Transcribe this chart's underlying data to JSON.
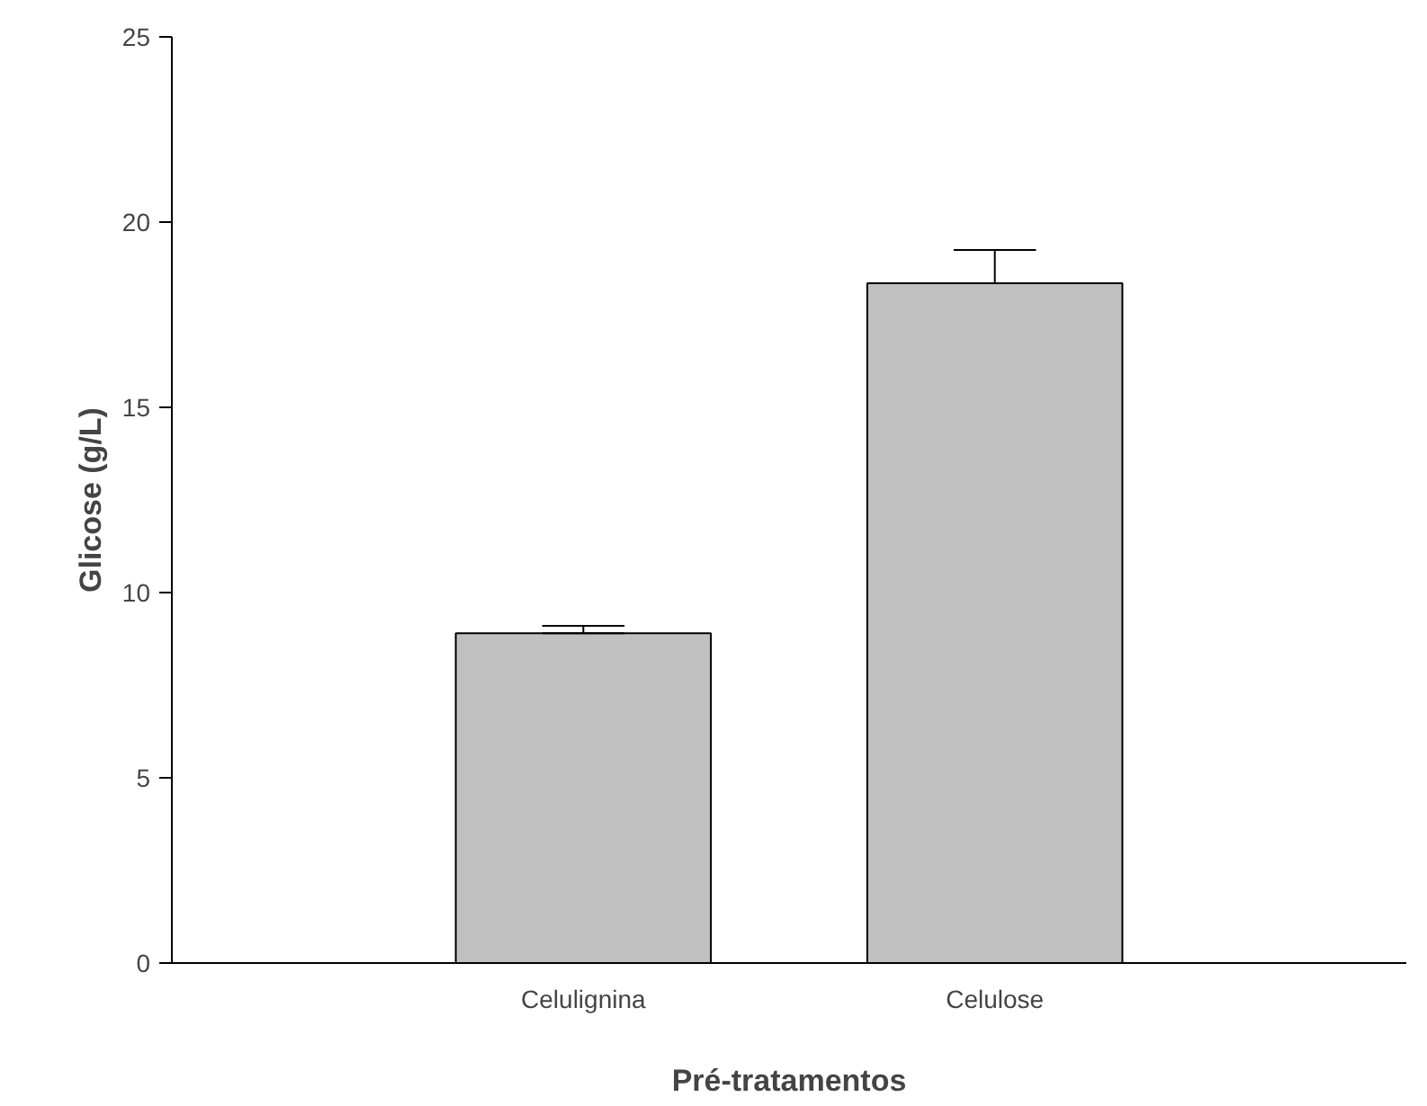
{
  "chart_data": {
    "type": "bar",
    "xlabel": "Pré-tratamentos",
    "ylabel": "Glicose (g/L)",
    "categories": [
      "Celulignina",
      "Celulose"
    ],
    "values": [
      8.9,
      18.35
    ],
    "errors": [
      [
        8.9,
        9.1
      ],
      [
        18.35,
        19.25
      ]
    ],
    "color": "#c0c0c0",
    "ylim": [
      0,
      25
    ],
    "yticks": [
      0,
      5,
      10,
      15,
      20,
      25
    ],
    "grid": false
  }
}
